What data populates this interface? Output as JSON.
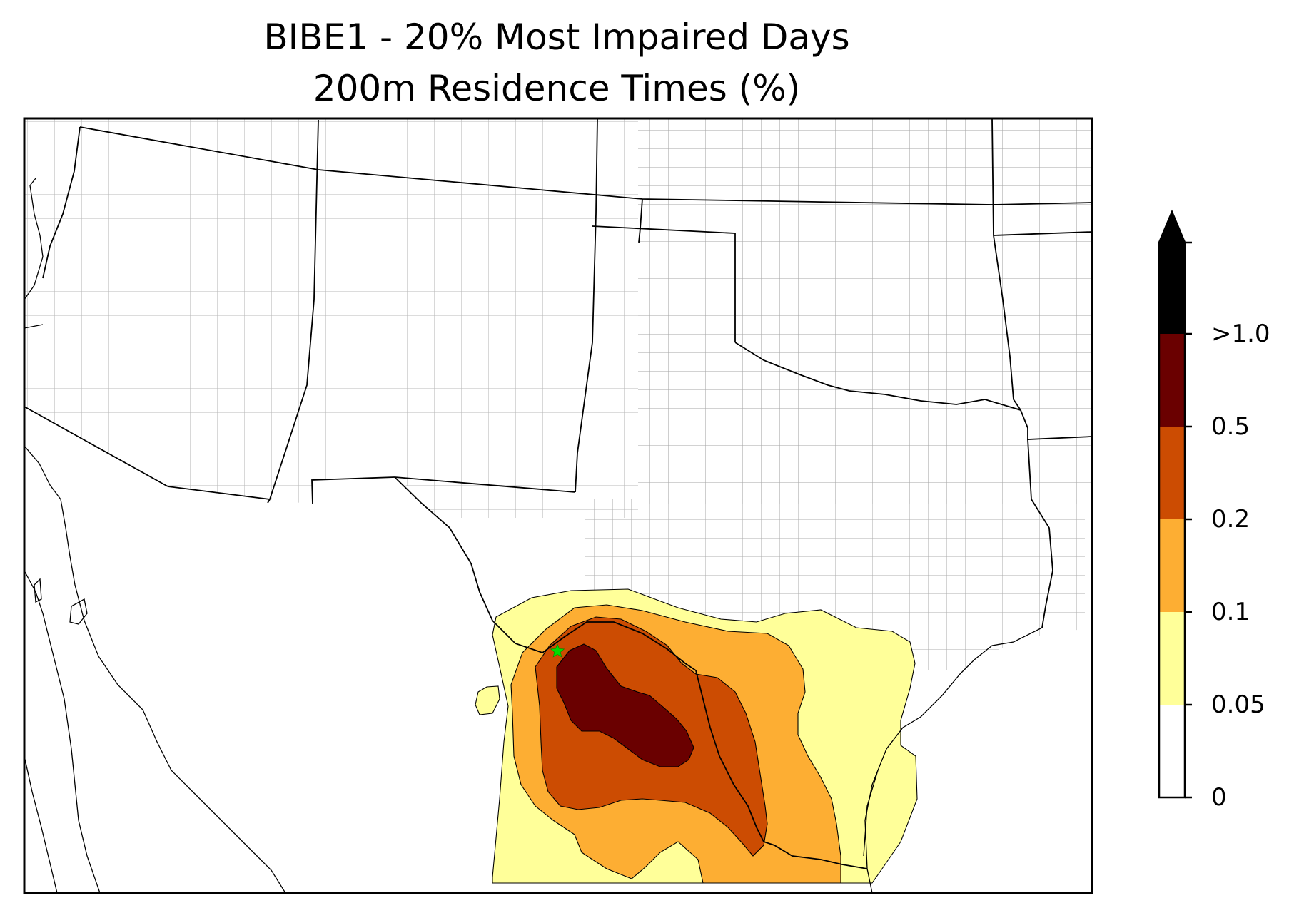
{
  "title": {
    "line1": "BIBE1 - 20% Most Impaired Days",
    "line2": "200m Residence Times (%)"
  },
  "map": {
    "site_marker": {
      "name": "BIBE1",
      "color": "#00dd00",
      "shape": "star"
    },
    "colors": {
      "county_lines": "#a6a6a6",
      "state_lines": "#000000",
      "coastline": "#000000"
    }
  },
  "colorbar": {
    "labels": [
      "0",
      "0.05",
      "0.1",
      "0.2",
      "0.5",
      ">1.0"
    ],
    "colors": [
      "#ffffff",
      "#ffff99",
      "#fdae33",
      "#cc4c02",
      "#6a0000",
      "#000000"
    ],
    "extend": "max"
  }
}
